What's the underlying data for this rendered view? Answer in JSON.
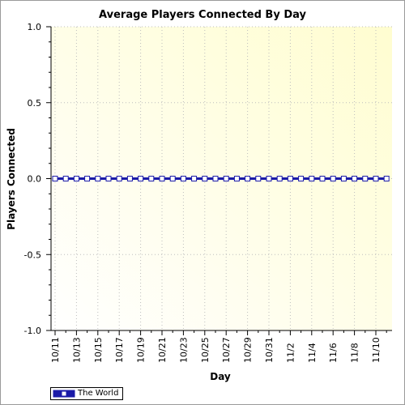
{
  "chart_data": {
    "type": "line",
    "title": "Average Players Connected By Day",
    "xlabel": "Day",
    "ylabel": "Players Connected",
    "ylim": [
      -1.0,
      1.0
    ],
    "y_ticks": [
      "1.0",
      "0.5",
      "0.0",
      "-0.5",
      "-1.0"
    ],
    "y_tick_values": [
      1.0,
      0.5,
      0.0,
      -0.5,
      -1.0
    ],
    "x": [
      "10/11",
      "10/12",
      "10/13",
      "10/14",
      "10/15",
      "10/16",
      "10/17",
      "10/18",
      "10/19",
      "10/20",
      "10/21",
      "10/22",
      "10/23",
      "10/24",
      "10/25",
      "10/26",
      "10/27",
      "10/28",
      "10/29",
      "10/30",
      "10/31",
      "11/1",
      "11/2",
      "11/3",
      "11/4",
      "11/5",
      "11/6",
      "11/7",
      "11/8",
      "11/9",
      "11/10",
      "11/11"
    ],
    "x_tick_labels": [
      "10/11",
      "10/13",
      "10/15",
      "10/17",
      "10/19",
      "10/21",
      "10/23",
      "10/25",
      "10/27",
      "10/29",
      "10/31",
      "11/2",
      "11/4",
      "11/6",
      "11/8",
      "11/10"
    ],
    "series": [
      {
        "name": "The World",
        "values": [
          0,
          0,
          0,
          0,
          0,
          0,
          0,
          0,
          0,
          0,
          0,
          0,
          0,
          0,
          0,
          0,
          0,
          0,
          0,
          0,
          0,
          0,
          0,
          0,
          0,
          0,
          0,
          0,
          0,
          0,
          0,
          0
        ],
        "color": "#1a1aa8"
      }
    ],
    "grid": true,
    "legend_position": "bottom-left",
    "background_colors": [
      "#ffffff",
      "#fffdd0"
    ]
  }
}
